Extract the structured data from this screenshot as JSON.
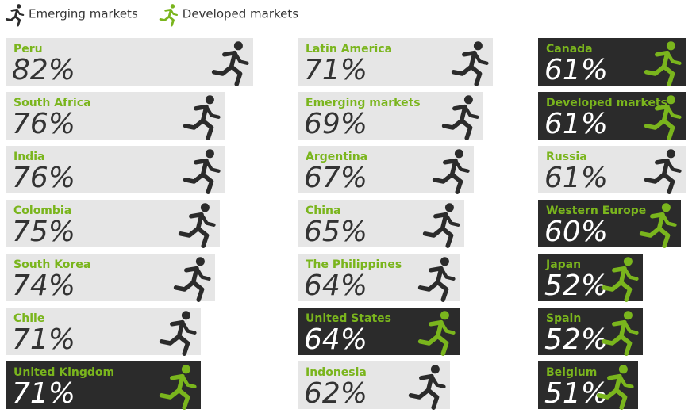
{
  "chart_data": {
    "type": "bar",
    "legend": [
      {
        "name": "Emerging markets",
        "color": "#2b2b2b"
      },
      {
        "name": "Developed markets",
        "color": "#7ab51d"
      }
    ],
    "categories": [
      "Peru",
      "South Africa",
      "India",
      "Colombia",
      "South Korea",
      "Chile",
      "United Kingdom",
      "Latin America",
      "Emerging markets",
      "Argentina",
      "China",
      "The Philippines",
      "United States",
      "Indonesia",
      "Canada",
      "Developed markets",
      "Russia",
      "Western Europe",
      "Japan",
      "Spain",
      "Belgium"
    ],
    "values": [
      82,
      76,
      76,
      75,
      74,
      71,
      71,
      71,
      69,
      67,
      65,
      64,
      64,
      62,
      61,
      61,
      61,
      60,
      52,
      52,
      51
    ],
    "value_labels": [
      "82%",
      "76%",
      "76%",
      "75%",
      "74%",
      "71%",
      "71%",
      "71%",
      "69%",
      "67%",
      "65%",
      "64%",
      "64%",
      "62%",
      "61%",
      "61%",
      "61%",
      "60%",
      "52%",
      "52%",
      "51%"
    ],
    "colors": [
      "#2b2b2b",
      "#2b2b2b",
      "#2b2b2b",
      "#2b2b2b",
      "#2b2b2b",
      "#2b2b2b",
      "#7ab51d",
      "#2b2b2b",
      "#2b2b2b",
      "#2b2b2b",
      "#2b2b2b",
      "#2b2b2b",
      "#7ab51d",
      "#2b2b2b",
      "#7ab51d",
      "#7ab51d",
      "#2b2b2b",
      "#7ab51d",
      "#7ab51d",
      "#7ab51d",
      "#7ab51d"
    ],
    "xlim": [
      30,
      82
    ]
  }
}
